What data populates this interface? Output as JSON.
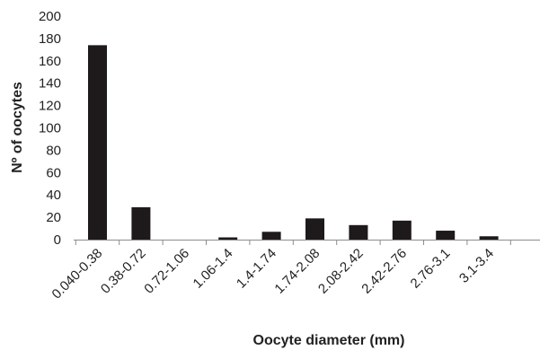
{
  "chart_data": {
    "type": "bar",
    "title": "",
    "xlabel": "Oocyte diameter (mm)",
    "ylabel": "Nº of oocytes",
    "categories": [
      "0.040-0.38",
      "0.38-0.72",
      "0.72-1.06",
      "1.06-1.4",
      "1.4-1.74",
      "1.74-2.08",
      "2.08-2.42",
      "2.42-2.76",
      "2.76-3.1",
      "3.1-3.4"
    ],
    "values": [
      174,
      29,
      0,
      2,
      7,
      19,
      13,
      17,
      8,
      3
    ],
    "ylim": [
      0,
      200
    ],
    "yticks": [
      "0",
      "20",
      "40",
      "60",
      "80",
      "100",
      "120",
      "140",
      "160",
      "180",
      "200"
    ],
    "grid": false,
    "legend": "none",
    "colors": {
      "bar": "#1e1a1b",
      "axis": "#8c8c8c",
      "text": "#222222"
    }
  }
}
